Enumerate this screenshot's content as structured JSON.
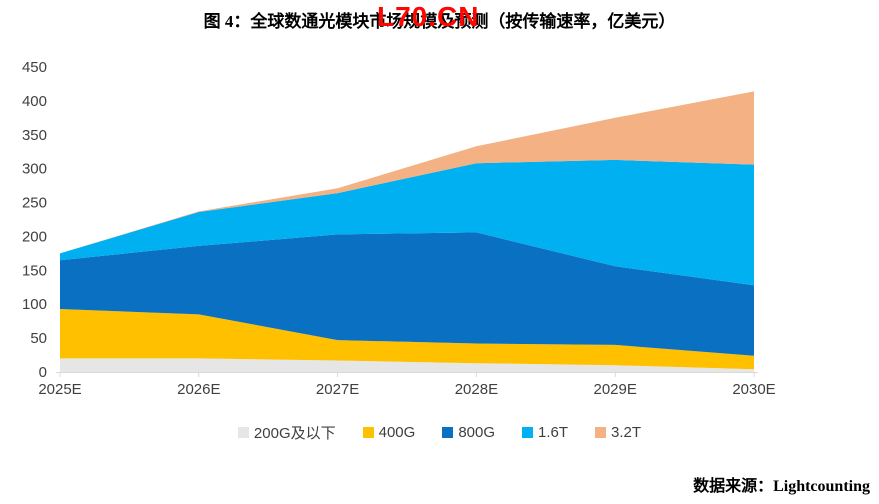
{
  "header": {
    "title": "图 4：全球数通光模块市场规模及预测（按传输速率，亿美元）",
    "watermark": "L70.CN"
  },
  "footer": {
    "source_label": "数据来源：",
    "source_value": "Lightcounting"
  },
  "chart_data": {
    "type": "area",
    "stacked": true,
    "title": "全球数通光模块市场规模及预测（按传输速率，亿美元）",
    "categories": [
      "2025E",
      "2026E",
      "2027E",
      "2028E",
      "2029E",
      "2030E"
    ],
    "series": [
      {
        "name": "200G及以下",
        "color": "#e7e6e6",
        "values": [
          20,
          20,
          17,
          13,
          10,
          4
        ]
      },
      {
        "name": "400G",
        "color": "#ffc000",
        "values": [
          73,
          65,
          30,
          29,
          30,
          20
        ]
      },
      {
        "name": "800G",
        "color": "#0a70c2",
        "values": [
          72,
          101,
          156,
          164,
          116,
          104
        ]
      },
      {
        "name": "1.6T",
        "color": "#00b0f0",
        "values": [
          10,
          50,
          61,
          102,
          157,
          178
        ]
      },
      {
        "name": "3.2T",
        "color": "#f4b183",
        "values": [
          0,
          1,
          7,
          25,
          62,
          108
        ]
      }
    ],
    "stacked_totals": [
      175,
      237,
      271,
      333,
      375,
      414
    ],
    "xlabel": "",
    "ylabel": "",
    "ylim": [
      0,
      450
    ],
    "yticks": [
      0,
      50,
      100,
      150,
      200,
      250,
      300,
      350,
      400,
      450
    ],
    "grid": false,
    "legend_position": "bottom",
    "axis_color": "#d9d9d9",
    "tick_label_color": "#404040"
  }
}
